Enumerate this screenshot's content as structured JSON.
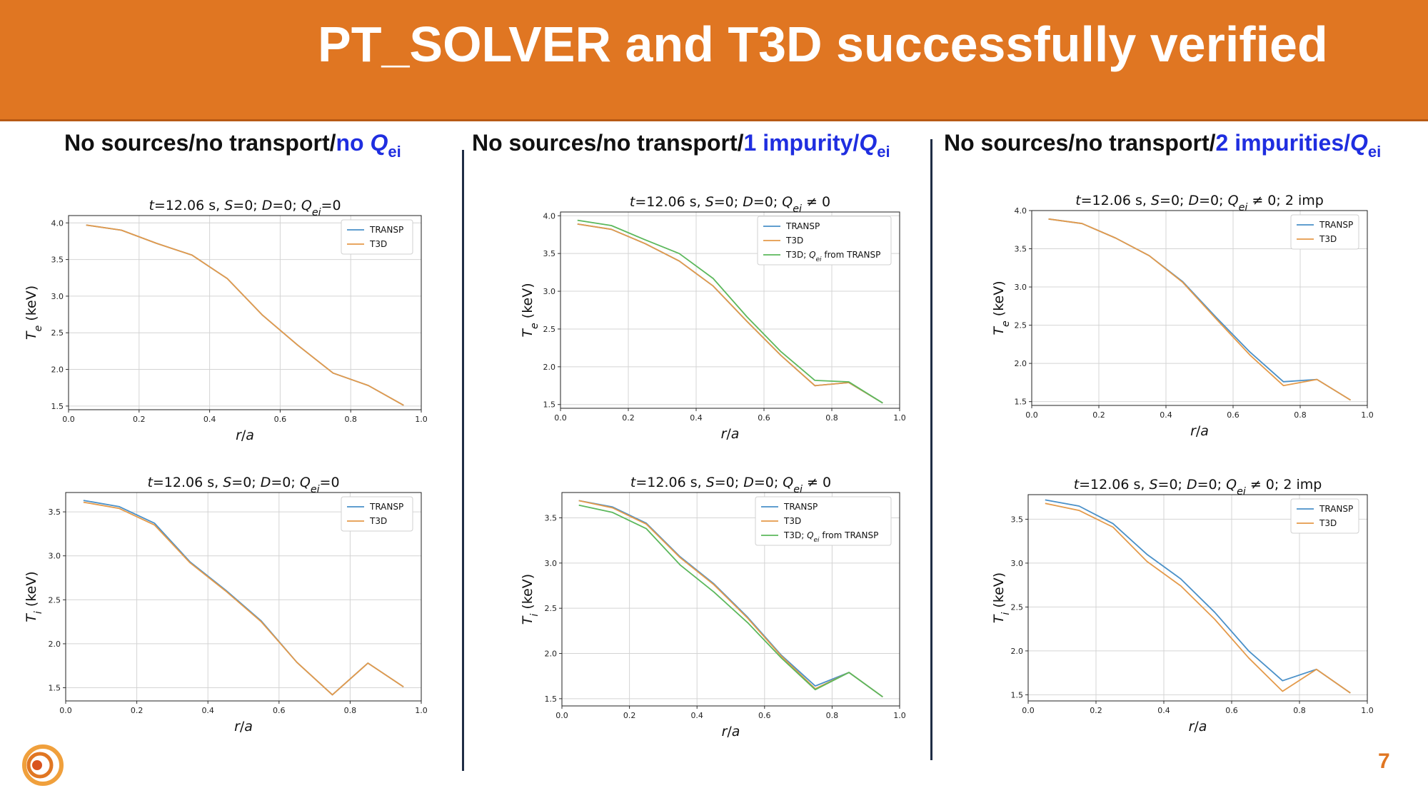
{
  "slide": {
    "title": "PT_SOLVER and T3D successfully verified",
    "page_number": "7"
  },
  "columns": [
    {
      "prefix": "No sources/no transport/",
      "highlight": "no ",
      "q": "Q",
      "sub": "ei"
    },
    {
      "prefix": "No sources/no transport/",
      "highlight": "1 impurity/",
      "q": "Q",
      "sub": "ei"
    },
    {
      "prefix": "No sources/no transport/",
      "highlight": "2 impurities/",
      "q": "Q",
      "sub": "ei"
    }
  ],
  "colors": {
    "banner": "#e07622",
    "highlight": "#1f2ee0",
    "transp": "#4a90c8",
    "t3d": "#e49a4a",
    "t3d_qei": "#5cb85c"
  },
  "chart_data": [
    {
      "id": "c1-te",
      "type": "line",
      "title": "t=12.06 s, S=0; D=0; Q_ei=0",
      "xlabel": "r/a",
      "ylabel": "T_e (keV)",
      "xlim": [
        0,
        1
      ],
      "ylim": [
        1.45,
        4.1
      ],
      "xticks": [
        0.0,
        0.2,
        0.4,
        0.6,
        0.8,
        1.0
      ],
      "yticks": [
        1.5,
        2.0,
        2.5,
        3.0,
        3.5,
        4.0
      ],
      "legend": "top-right",
      "grid": true,
      "x": [
        0.05,
        0.15,
        0.25,
        0.35,
        0.45,
        0.55,
        0.65,
        0.75,
        0.85,
        0.95
      ],
      "series": [
        {
          "name": "TRANSP",
          "color": "#4a90c8",
          "values": [
            3.97,
            3.9,
            3.72,
            3.56,
            3.24,
            2.74,
            2.33,
            1.95,
            1.78,
            1.51
          ]
        },
        {
          "name": "T3D",
          "color": "#e49a4a",
          "values": [
            3.97,
            3.9,
            3.72,
            3.56,
            3.24,
            2.74,
            2.33,
            1.95,
            1.78,
            1.51
          ]
        }
      ]
    },
    {
      "id": "c1-ti",
      "type": "line",
      "title": "t=12.06 s, S=0; D=0; Q_ei=0",
      "xlabel": "r/a",
      "ylabel": "T_i (keV)",
      "xlim": [
        0,
        1
      ],
      "ylim": [
        1.35,
        3.72
      ],
      "xticks": [
        0.0,
        0.2,
        0.4,
        0.6,
        0.8,
        1.0
      ],
      "yticks": [
        1.5,
        2.0,
        2.5,
        3.0,
        3.5
      ],
      "legend": "top-right",
      "grid": true,
      "x": [
        0.05,
        0.15,
        0.25,
        0.35,
        0.45,
        0.55,
        0.65,
        0.75,
        0.85,
        0.95
      ],
      "series": [
        {
          "name": "TRANSP",
          "color": "#4a90c8",
          "values": [
            3.63,
            3.56,
            3.37,
            2.93,
            2.61,
            2.26,
            1.79,
            1.42,
            1.78,
            1.51
          ]
        },
        {
          "name": "T3D",
          "color": "#e49a4a",
          "values": [
            3.61,
            3.54,
            3.35,
            2.92,
            2.6,
            2.25,
            1.79,
            1.42,
            1.78,
            1.51
          ]
        }
      ]
    },
    {
      "id": "c2-te",
      "type": "line",
      "title": "t=12.06 s, S=0; D=0; Q_ei ≠ 0",
      "xlabel": "r/a",
      "ylabel": "T_e (keV)",
      "xlim": [
        0,
        1
      ],
      "ylim": [
        1.45,
        4.05
      ],
      "xticks": [
        0.0,
        0.2,
        0.4,
        0.6,
        0.8,
        1.0
      ],
      "yticks": [
        1.5,
        2.0,
        2.5,
        3.0,
        3.5,
        4.0
      ],
      "legend": "top-right",
      "grid": true,
      "x": [
        0.05,
        0.15,
        0.25,
        0.35,
        0.45,
        0.55,
        0.65,
        0.75,
        0.85,
        0.95
      ],
      "series": [
        {
          "name": "TRANSP",
          "color": "#4a90c8",
          "values": [
            3.89,
            3.82,
            3.63,
            3.4,
            3.07,
            2.6,
            2.15,
            1.75,
            1.79,
            1.52
          ]
        },
        {
          "name": "T3D",
          "color": "#e49a4a",
          "values": [
            3.89,
            3.82,
            3.63,
            3.4,
            3.07,
            2.6,
            2.15,
            1.75,
            1.79,
            1.52
          ]
        },
        {
          "name": "T3D; Q_ei from TRANSP",
          "color": "#5cb85c",
          "values": [
            3.94,
            3.87,
            3.68,
            3.5,
            3.17,
            2.66,
            2.2,
            1.82,
            1.8,
            1.52
          ]
        }
      ]
    },
    {
      "id": "c2-ti",
      "type": "line",
      "title": "t=12.06 s, S=0; D=0; Q_ei ≠ 0",
      "xlabel": "r/a",
      "ylabel": "T_i (keV)",
      "xlim": [
        0,
        1
      ],
      "ylim": [
        1.42,
        3.78
      ],
      "xticks": [
        0.0,
        0.2,
        0.4,
        0.6,
        0.8,
        1.0
      ],
      "yticks": [
        1.5,
        2.0,
        2.5,
        3.0,
        3.5
      ],
      "legend": "top-right",
      "grid": true,
      "x": [
        0.05,
        0.15,
        0.25,
        0.35,
        0.45,
        0.55,
        0.65,
        0.75,
        0.85,
        0.95
      ],
      "series": [
        {
          "name": "TRANSP",
          "color": "#4a90c8",
          "values": [
            3.69,
            3.62,
            3.44,
            3.07,
            2.77,
            2.4,
            1.98,
            1.64,
            1.79,
            1.52
          ]
        },
        {
          "name": "T3D",
          "color": "#e49a4a",
          "values": [
            3.69,
            3.61,
            3.43,
            3.06,
            2.76,
            2.39,
            1.97,
            1.61,
            1.79,
            1.52
          ]
        },
        {
          "name": "T3D; Q_ei from TRANSP",
          "color": "#5cb85c",
          "values": [
            3.64,
            3.56,
            3.38,
            2.98,
            2.68,
            2.34,
            1.95,
            1.6,
            1.79,
            1.52
          ]
        }
      ]
    },
    {
      "id": "c3-te",
      "type": "line",
      "title": "t=12.06 s, S=0; D=0; Q_ei ≠ 0; 2 imp",
      "xlabel": "r/a",
      "ylabel": "T_e (keV)",
      "xlim": [
        0,
        1
      ],
      "ylim": [
        1.45,
        4.0
      ],
      "xticks": [
        0.0,
        0.2,
        0.4,
        0.6,
        0.8,
        1.0
      ],
      "yticks": [
        1.5,
        2.0,
        2.5,
        3.0,
        3.5,
        4.0
      ],
      "legend": "top-right",
      "grid": true,
      "x": [
        0.05,
        0.15,
        0.25,
        0.35,
        0.45,
        0.55,
        0.65,
        0.75,
        0.85,
        0.95
      ],
      "series": [
        {
          "name": "TRANSP",
          "color": "#4a90c8",
          "values": [
            3.89,
            3.83,
            3.64,
            3.41,
            3.07,
            2.6,
            2.15,
            1.76,
            1.79,
            1.52
          ]
        },
        {
          "name": "T3D",
          "color": "#e49a4a",
          "values": [
            3.89,
            3.83,
            3.64,
            3.41,
            3.06,
            2.58,
            2.11,
            1.71,
            1.79,
            1.52
          ]
        }
      ]
    },
    {
      "id": "c3-ti",
      "type": "line",
      "title": "t=12.06 s, S=0; D=0; Q_ei ≠ 0; 2 imp",
      "xlabel": "r/a",
      "ylabel": "T_i (keV)",
      "xlim": [
        0,
        1
      ],
      "ylim": [
        1.43,
        3.78
      ],
      "xticks": [
        0.0,
        0.2,
        0.4,
        0.6,
        0.8,
        1.0
      ],
      "yticks": [
        1.5,
        2.0,
        2.5,
        3.0,
        3.5
      ],
      "legend": "top-right",
      "grid": true,
      "x": [
        0.05,
        0.15,
        0.25,
        0.35,
        0.45,
        0.55,
        0.65,
        0.75,
        0.85,
        0.95
      ],
      "series": [
        {
          "name": "TRANSP",
          "color": "#4a90c8",
          "values": [
            3.72,
            3.65,
            3.45,
            3.1,
            2.82,
            2.44,
            2.0,
            1.66,
            1.79,
            1.52
          ]
        },
        {
          "name": "T3D",
          "color": "#e49a4a",
          "values": [
            3.68,
            3.6,
            3.41,
            3.02,
            2.74,
            2.36,
            1.92,
            1.54,
            1.79,
            1.52
          ]
        }
      ]
    }
  ]
}
